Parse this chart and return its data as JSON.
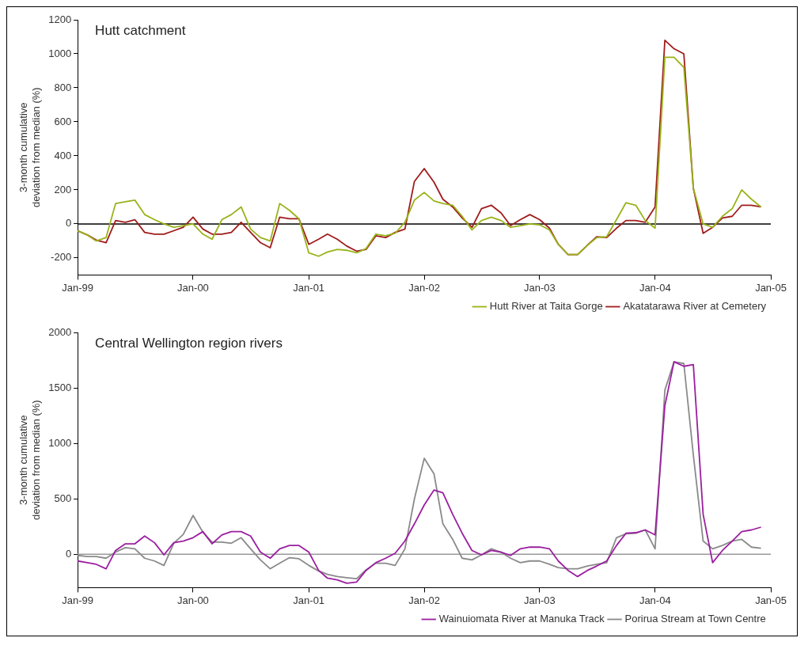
{
  "chart_data": [
    {
      "type": "line",
      "title": "Hutt catchment",
      "ylabel": "3-month cumulative deviation from median (%)",
      "legend": "bottom right",
      "grid": false,
      "x": [
        "1999-01",
        "1999-02",
        "1999-03",
        "1999-04",
        "1999-05",
        "1999-06",
        "1999-07",
        "1999-08",
        "1999-09",
        "1999-10",
        "1999-11",
        "1999-12",
        "2000-01",
        "2000-02",
        "2000-03",
        "2000-04",
        "2000-05",
        "2000-06",
        "2000-07",
        "2000-08",
        "2000-09",
        "2000-10",
        "2000-11",
        "2000-12",
        "2001-01",
        "2001-02",
        "2001-03",
        "2001-04",
        "2001-05",
        "2001-06",
        "2001-07",
        "2001-08",
        "2001-09",
        "2001-10",
        "2001-11",
        "2001-12",
        "2002-01",
        "2002-02",
        "2002-03",
        "2002-04",
        "2002-05",
        "2002-06",
        "2002-07",
        "2002-08",
        "2002-09",
        "2002-10",
        "2002-11",
        "2002-12",
        "2003-01",
        "2003-02",
        "2003-03",
        "2003-04",
        "2003-05",
        "2003-06",
        "2003-07",
        "2003-08",
        "2003-09",
        "2003-10",
        "2003-11",
        "2003-12",
        "2004-01",
        "2004-02",
        "2004-03",
        "2004-04",
        "2004-05",
        "2004-06",
        "2004-07",
        "2004-08",
        "2004-09",
        "2004-10",
        "2004-11",
        "2004-12"
      ],
      "xlim": [
        "1999-01",
        "2005-01"
      ],
      "xticks": [
        {
          "value": "1999-01",
          "label": "Jan-99"
        },
        {
          "value": "2000-01",
          "label": "Jan-00"
        },
        {
          "value": "2001-01",
          "label": "Jan-01"
        },
        {
          "value": "2002-01",
          "label": "Jan-02"
        },
        {
          "value": "2003-01",
          "label": "Jan-03"
        },
        {
          "value": "2004-01",
          "label": "Jan-04"
        },
        {
          "value": "2005-01",
          "label": "Jan-05"
        }
      ],
      "ylim": [
        -300,
        1200
      ],
      "yticks": [
        -200,
        0,
        200,
        400,
        600,
        800,
        1000,
        1200
      ],
      "ref_lines": [
        {
          "axis": "y",
          "value": 0,
          "color": "#000000"
        }
      ],
      "series": [
        {
          "name": "Hutt River at Taita Gorge",
          "color": "#99b31a",
          "values": [
            -40,
            -65,
            -100,
            -80,
            120,
            130,
            140,
            55,
            25,
            0,
            -20,
            -10,
            0,
            -60,
            -90,
            25,
            55,
            100,
            -30,
            -80,
            -100,
            120,
            80,
            30,
            -170,
            -190,
            -165,
            -150,
            -155,
            -170,
            -145,
            -60,
            -70,
            -55,
            10,
            140,
            185,
            135,
            120,
            110,
            45,
            -35,
            20,
            40,
            20,
            -20,
            -10,
            0,
            -5,
            -35,
            -120,
            -180,
            -180,
            -125,
            -80,
            -75,
            25,
            125,
            110,
            20,
            -25,
            980,
            980,
            920,
            210,
            0,
            -20,
            45,
            90,
            200,
            145,
            100
          ]
        },
        {
          "name": "Akatatarawa River at Cemetery",
          "color": "#a01c1c",
          "values": [
            -40,
            -65,
            -95,
            -110,
            20,
            10,
            25,
            -50,
            -60,
            -60,
            -40,
            -20,
            40,
            -30,
            -60,
            -60,
            -50,
            10,
            -50,
            -110,
            -140,
            40,
            30,
            30,
            -120,
            -90,
            -60,
            -90,
            -130,
            -160,
            -150,
            -70,
            -80,
            -50,
            -30,
            250,
            325,
            245,
            145,
            100,
            35,
            -20,
            90,
            110,
            65,
            -10,
            25,
            55,
            25,
            -25,
            -120,
            -180,
            -180,
            -125,
            -75,
            -80,
            -25,
            20,
            20,
            10,
            100,
            1080,
            1030,
            1000,
            210,
            -55,
            -20,
            35,
            45,
            110,
            110,
            100
          ]
        }
      ]
    },
    {
      "type": "line",
      "title": "Central Wellington region rivers",
      "ylabel": "3-month cumulative deviation from median (%)",
      "legend": "bottom right",
      "grid": false,
      "x": [
        "1999-01",
        "1999-02",
        "1999-03",
        "1999-04",
        "1999-05",
        "1999-06",
        "1999-07",
        "1999-08",
        "1999-09",
        "1999-10",
        "1999-11",
        "1999-12",
        "2000-01",
        "2000-02",
        "2000-03",
        "2000-04",
        "2000-05",
        "2000-06",
        "2000-07",
        "2000-08",
        "2000-09",
        "2000-10",
        "2000-11",
        "2000-12",
        "2001-01",
        "2001-02",
        "2001-03",
        "2001-04",
        "2001-05",
        "2001-06",
        "2001-07",
        "2001-08",
        "2001-09",
        "2001-10",
        "2001-11",
        "2001-12",
        "2002-01",
        "2002-02",
        "2002-03",
        "2002-04",
        "2002-05",
        "2002-06",
        "2002-07",
        "2002-08",
        "2002-09",
        "2002-10",
        "2002-11",
        "2002-12",
        "2003-01",
        "2003-02",
        "2003-03",
        "2003-04",
        "2003-05",
        "2003-06",
        "2003-07",
        "2003-08",
        "2003-09",
        "2003-10",
        "2003-11",
        "2003-12",
        "2004-01",
        "2004-02",
        "2004-03",
        "2004-04",
        "2004-05",
        "2004-06",
        "2004-07",
        "2004-08",
        "2004-09",
        "2004-10",
        "2004-11",
        "2004-12"
      ],
      "xlim": [
        "1999-01",
        "2005-01"
      ],
      "xticks": [
        {
          "value": "1999-01",
          "label": "Jan-99"
        },
        {
          "value": "2000-01",
          "label": "Jan-00"
        },
        {
          "value": "2001-01",
          "label": "Jan-01"
        },
        {
          "value": "2002-01",
          "label": "Jan-02"
        },
        {
          "value": "2003-01",
          "label": "Jan-03"
        },
        {
          "value": "2004-01",
          "label": "Jan-04"
        },
        {
          "value": "2005-01",
          "label": "Jan-05"
        }
      ],
      "ylim": [
        -300,
        2000
      ],
      "yticks": [
        0,
        500,
        1000,
        1500,
        2000
      ],
      "ref_lines": [
        {
          "axis": "y",
          "value": 0,
          "color": "#999999"
        }
      ],
      "series": [
        {
          "name": "Wainuiomata River at Manuka Track",
          "color": "#9b1fa0",
          "values": [
            -60,
            -75,
            -90,
            -130,
            35,
            95,
            95,
            165,
            105,
            -5,
            105,
            120,
            150,
            205,
            95,
            175,
            205,
            205,
            165,
            20,
            -35,
            50,
            80,
            80,
            20,
            -145,
            -215,
            -230,
            -260,
            -250,
            -145,
            -75,
            -35,
            10,
            120,
            275,
            445,
            580,
            555,
            360,
            190,
            35,
            -5,
            35,
            20,
            -10,
            50,
            65,
            65,
            50,
            -60,
            -145,
            -200,
            -145,
            -105,
            -60,
            80,
            190,
            195,
            220,
            175,
            1340,
            1735,
            1695,
            1710,
            360,
            -75,
            35,
            120,
            205,
            220,
            245
          ]
        },
        {
          "name": "Porirua Stream at Town Centre",
          "color": "#8a8a8a",
          "values": [
            -10,
            -20,
            -20,
            -35,
            20,
            60,
            50,
            -35,
            -60,
            -100,
            100,
            180,
            350,
            200,
            110,
            110,
            100,
            150,
            50,
            -50,
            -130,
            -80,
            -30,
            -40,
            -100,
            -150,
            -180,
            -200,
            -210,
            -220,
            -140,
            -80,
            -80,
            -100,
            50,
            500,
            865,
            725,
            275,
            135,
            -35,
            -50,
            -5,
            50,
            20,
            -35,
            -75,
            -60,
            -60,
            -90,
            -120,
            -130,
            -130,
            -105,
            -90,
            -75,
            150,
            185,
            190,
            220,
            50,
            1480,
            1735,
            1720,
            895,
            120,
            50,
            80,
            120,
            135,
            65,
            55
          ]
        }
      ]
    }
  ]
}
